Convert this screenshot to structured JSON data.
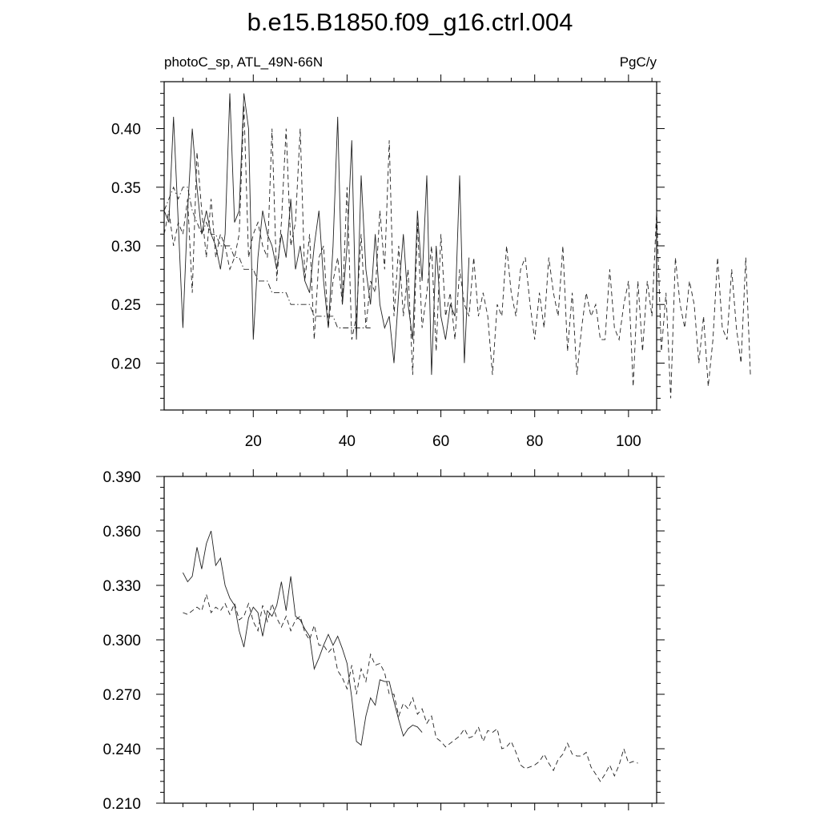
{
  "title": "b.e15.B1850.f09_g16.ctrl.004",
  "chart_data": [
    {
      "type": "line",
      "left_label": "photoC_sp, ATL_49N-66N",
      "right_label": "PgC/y",
      "xlim": [
        1,
        106
      ],
      "ylim": [
        0.16,
        0.44
      ],
      "xticks": [
        20,
        40,
        60,
        80,
        100
      ],
      "yticks": [
        0.2,
        0.25,
        0.3,
        0.35,
        0.4
      ],
      "ytick_labels": [
        "0.20",
        "0.25",
        "0.30",
        "0.35",
        "0.40"
      ],
      "grid": false,
      "series": [
        {
          "style": "solid",
          "x_start": 1,
          "values": [
            0.33,
            0.32,
            0.41,
            0.32,
            0.23,
            0.33,
            0.4,
            0.35,
            0.31,
            0.33,
            0.31,
            0.3,
            0.28,
            0.31,
            0.43,
            0.32,
            0.33,
            0.43,
            0.4,
            0.22,
            0.29,
            0.33,
            0.31,
            0.3,
            0.28,
            0.31,
            0.29,
            0.34,
            0.28,
            0.3,
            0.27,
            0.26,
            0.3,
            0.33,
            0.27,
            0.23,
            0.3,
            0.41,
            0.25,
            0.3,
            0.39,
            0.22,
            0.36,
            0.28,
            0.25,
            0.31,
            0.25,
            0.23,
            0.24,
            0.2,
            0.26,
            0.31,
            0.25,
            0.22,
            0.33,
            0.27,
            0.36,
            0.19,
            0.3,
            0.24,
            0.22,
            0.25,
            0.24,
            0.36,
            0.2,
            0.29
          ]
        },
        {
          "style": "dashed",
          "x_start": 1,
          "values": [
            0.31,
            0.33,
            0.3,
            0.32,
            0.31,
            0.34,
            0.26,
            0.38,
            0.33,
            0.29,
            0.34,
            0.29,
            0.31,
            0.3,
            0.28,
            0.29,
            0.31,
            0.42,
            0.29,
            0.31,
            0.32,
            0.3,
            0.29,
            0.4,
            0.27,
            0.32,
            0.4,
            0.3,
            0.32,
            0.4,
            0.27,
            0.31,
            0.22,
            0.29,
            0.3,
            0.23,
            0.27,
            0.29,
            0.25,
            0.35,
            0.22,
            0.24,
            0.31,
            0.23,
            0.27,
            0.26,
            0.33,
            0.28,
            0.39,
            0.24,
            0.3,
            0.24,
            0.28,
            0.19,
            0.32,
            0.23,
            0.26,
            0.3,
            0.21,
            0.31,
            0.24,
            0.26,
            0.22,
            0.28,
            0.25,
            0.24,
            0.29,
            0.24,
            0.26,
            0.24,
            0.19,
            0.25,
            0.24,
            0.3,
            0.26,
            0.24,
            0.28,
            0.29,
            0.25,
            0.22,
            0.26,
            0.23,
            0.29,
            0.26,
            0.24,
            0.3,
            0.21,
            0.26,
            0.19,
            0.23,
            0.26,
            0.24,
            0.25,
            0.22,
            0.22,
            0.28,
            0.23,
            0.22,
            0.25,
            0.27,
            0.18,
            0.27,
            0.21,
            0.27,
            0.24,
            0.33,
            0.21,
            0.26,
            0.17,
            0.29,
            0.25,
            0.23,
            0.27,
            0.25,
            0.2,
            0.24,
            0.18,
            0.22,
            0.29,
            0.23,
            0.22,
            0.28,
            0.23,
            0.2,
            0.29,
            0.19
          ]
        },
        {
          "style": "dashdot",
          "x_start": 1,
          "values": [
            0.33,
            0.34,
            0.35,
            0.34,
            0.35,
            0.35,
            0.33,
            0.32,
            0.31,
            0.32,
            0.31,
            0.31,
            0.3,
            0.3,
            0.3,
            0.29,
            0.29,
            0.28,
            0.28,
            0.28,
            0.27,
            0.27,
            0.27,
            0.26,
            0.26,
            0.26,
            0.26,
            0.25,
            0.25,
            0.25,
            0.25,
            0.25,
            0.24,
            0.24,
            0.24,
            0.24,
            0.24,
            0.23,
            0.23,
            0.23,
            0.23,
            0.23,
            0.23,
            0.23,
            0.23
          ]
        }
      ]
    },
    {
      "type": "line",
      "xlim": [
        1,
        106
      ],
      "ylim": [
        0.21,
        0.39
      ],
      "xticks": [
        20,
        40,
        60,
        80,
        100
      ],
      "yticks": [
        0.21,
        0.24,
        0.27,
        0.3,
        0.33,
        0.36,
        0.39
      ],
      "ytick_labels": [
        "0.210",
        "0.240",
        "0.270",
        "0.300",
        "0.330",
        "0.360",
        "0.390"
      ],
      "grid": false,
      "series": [
        {
          "style": "solid",
          "x_start": 5,
          "values": [
            0.337,
            0.332,
            0.335,
            0.351,
            0.339,
            0.353,
            0.36,
            0.341,
            0.345,
            0.33,
            0.323,
            0.319,
            0.305,
            0.296,
            0.312,
            0.318,
            0.315,
            0.302,
            0.316,
            0.313,
            0.319,
            0.332,
            0.316,
            0.335,
            0.313,
            0.311,
            0.306,
            0.302,
            0.284,
            0.29,
            0.297,
            0.303,
            0.297,
            0.302,
            0.295,
            0.287,
            0.268,
            0.244,
            0.242,
            0.258,
            0.268,
            0.264,
            0.278,
            0.277,
            0.277,
            0.266,
            0.256,
            0.247,
            0.251,
            0.253,
            0.252,
            0.249
          ]
        },
        {
          "style": "dashed",
          "x_start": 5,
          "values": [
            0.315,
            0.314,
            0.316,
            0.318,
            0.316,
            0.325,
            0.315,
            0.318,
            0.316,
            0.32,
            0.314,
            0.32,
            0.311,
            0.313,
            0.32,
            0.31,
            0.305,
            0.319,
            0.31,
            0.32,
            0.312,
            0.307,
            0.313,
            0.305,
            0.311,
            0.313,
            0.304,
            0.3,
            0.308,
            0.297,
            0.297,
            0.293,
            0.296,
            0.283,
            0.279,
            0.273,
            0.286,
            0.27,
            0.284,
            0.277,
            0.292,
            0.286,
            0.287,
            0.282,
            0.27,
            0.27,
            0.258,
            0.265,
            0.262,
            0.268,
            0.259,
            0.262,
            0.254,
            0.258,
            0.246,
            0.244,
            0.241,
            0.243,
            0.245,
            0.247,
            0.251,
            0.246,
            0.247,
            0.252,
            0.244,
            0.25,
            0.249,
            0.251,
            0.24,
            0.241,
            0.244,
            0.238,
            0.231,
            0.229,
            0.23,
            0.231,
            0.233,
            0.237,
            0.232,
            0.228,
            0.234,
            0.237,
            0.243,
            0.237,
            0.236,
            0.236,
            0.238,
            0.23,
            0.226,
            0.222,
            0.226,
            0.231,
            0.225,
            0.231,
            0.24,
            0.232,
            0.233,
            0.232
          ]
        }
      ]
    }
  ]
}
